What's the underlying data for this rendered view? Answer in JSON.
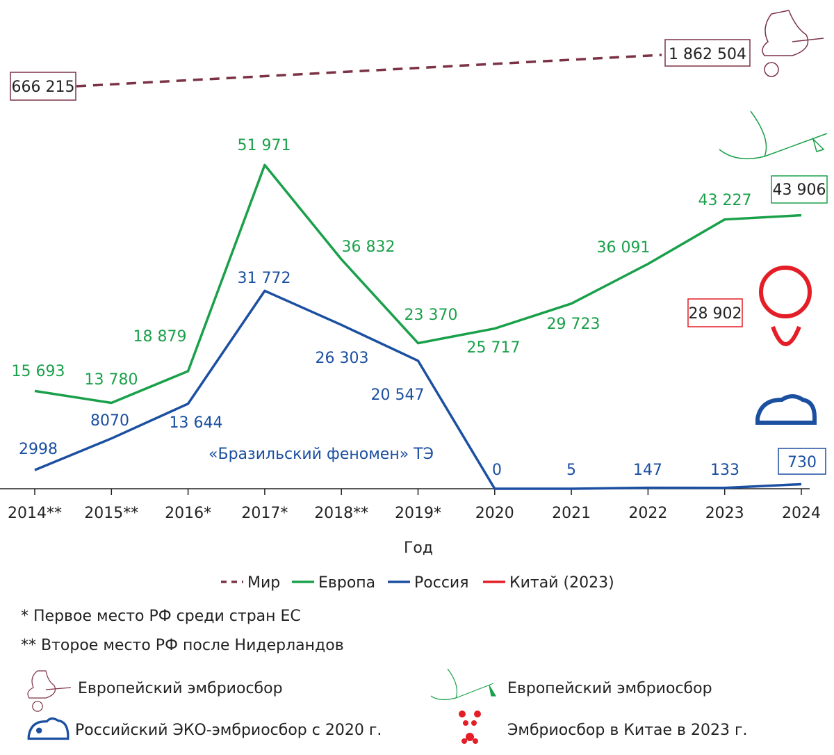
{
  "chart_data": {
    "type": "line",
    "xlabel": "Год",
    "categories": [
      "2014**",
      "2015**",
      "2016*",
      "2017*",
      "2018**",
      "2019*",
      "2020",
      "2021",
      "2022",
      "2023",
      "2024"
    ],
    "series": [
      {
        "name": "Мир",
        "color": "#7b3245",
        "style": "dashed",
        "points": [
          {
            "x": "2014**",
            "value": 666215,
            "label": "666 215"
          },
          {
            "x": "2024",
            "value": 1862504,
            "label": "1 862 504"
          }
        ]
      },
      {
        "name": "Европа",
        "color": "#1aa04a",
        "values": [
          15693,
          13780,
          18879,
          51971,
          36832,
          23370,
          25717,
          29723,
          36091,
          43227,
          43906
        ],
        "labels": [
          "15 693",
          "13 780",
          "18 879",
          "51 971",
          "36 832",
          "23 370",
          "25 717",
          "29 723",
          "36 091",
          "43 227",
          "43 906"
        ]
      },
      {
        "name": "Россия",
        "color": "#1b4fa0",
        "values": [
          2998,
          8070,
          13644,
          31772,
          26303,
          20547,
          0,
          5,
          147,
          133,
          730
        ],
        "labels": [
          "2998",
          "8070",
          "13 644",
          "31 772",
          "26 303",
          "20 547",
          "0",
          "5",
          "147",
          "133",
          "730"
        ]
      },
      {
        "name": "Китай (2023)",
        "color": "#e41e26",
        "points": [
          {
            "x": "2023",
            "value": 28902,
            "label": "28 902"
          }
        ]
      }
    ],
    "annotations": [
      "«Бразильский феномен» ТЭ"
    ],
    "legend": [
      "Мир",
      "Европа",
      "Россия",
      "Китай (2023)"
    ],
    "legend_position": "bottom"
  },
  "notes": [
    "* Первое место РФ среди стран ЕС",
    "** Второе место РФ после Нидерландов"
  ],
  "icon_legend": [
    {
      "icon": "pink-stork-icon",
      "label": "Европейский эмбриосбор"
    },
    {
      "icon": "green-stork-icon",
      "label": "Европейский эмбриосбор"
    },
    {
      "icon": "blue-mouse-icon",
      "label": "Российский ЭКО-эмбриосбор с 2020 г."
    },
    {
      "icon": "red-panda-icon",
      "label": "Эмбриосбор в Китае в 2023 г."
    }
  ]
}
